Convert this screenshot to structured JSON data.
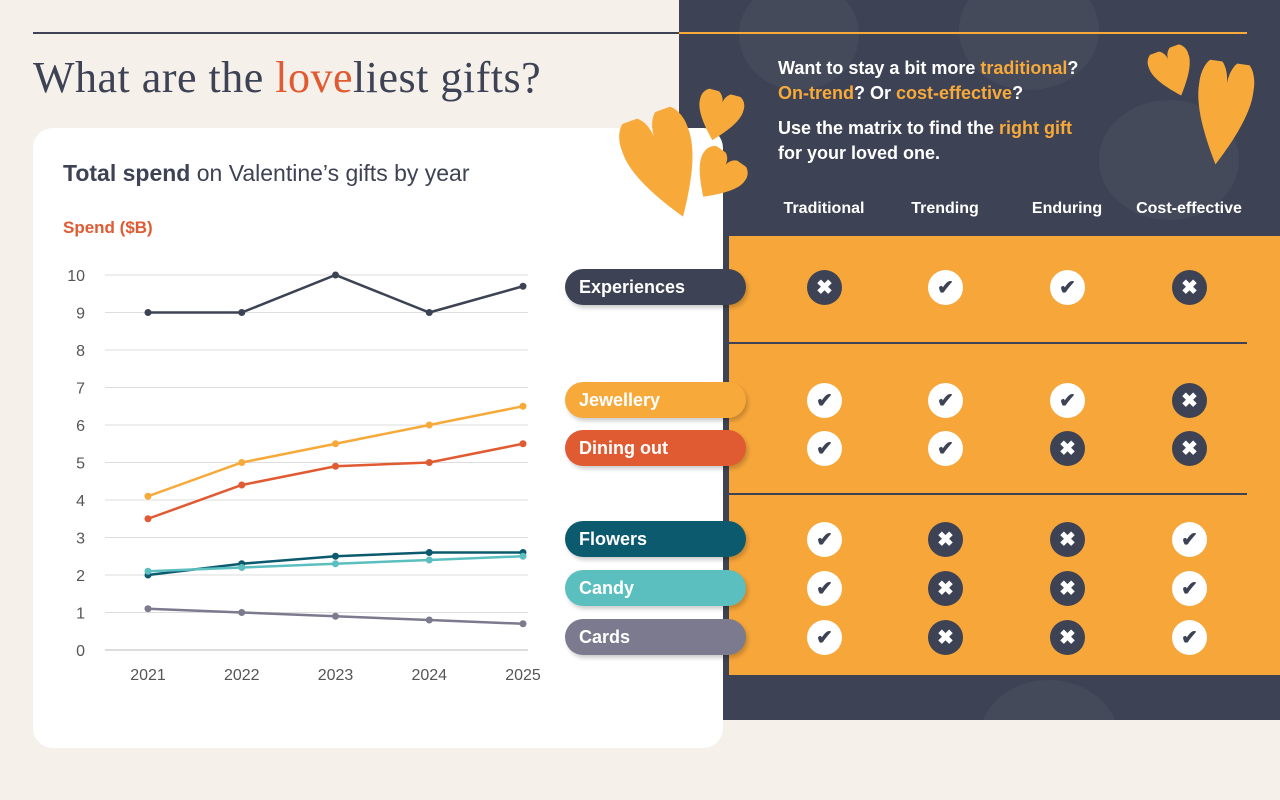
{
  "title": {
    "before": "What are the ",
    "highlight": "love",
    "after": "liest gifts?"
  },
  "chart_title": {
    "bold": "Total spend",
    "rest": " on Valentine’s gifts by year"
  },
  "intro": {
    "line1_a": "Want to stay a bit more ",
    "line1_b": "traditional",
    "line1_c": "?",
    "line2_a": "On-trend",
    "line2_b": "? Or ",
    "line2_c": "cost-effective",
    "line2_d": "?",
    "line3_a": "Use the matrix to find the ",
    "line3_b": "right gift",
    "line3_c": "for your loved one."
  },
  "columns": [
    "Traditional",
    "Trending",
    "Enduring",
    "Cost-effective"
  ],
  "colors": {
    "dark": "#3d4354",
    "orange": "#f7a93a",
    "red": "#e05a32",
    "teal": "#0b5a6e",
    "aqua": "#5bbfbf",
    "grey": "#7b7a8e"
  },
  "matrix": [
    {
      "label": "Experiences",
      "color": "#3d4354",
      "values": [
        false,
        true,
        true,
        false
      ]
    },
    {
      "label": "Jewellery",
      "color": "#f7a93a",
      "values": [
        true,
        true,
        true,
        false
      ]
    },
    {
      "label": "Dining out",
      "color": "#e05a32",
      "values": [
        true,
        true,
        false,
        false
      ]
    },
    {
      "label": "Flowers",
      "color": "#0b5a6e",
      "values": [
        true,
        false,
        false,
        true
      ]
    },
    {
      "label": "Candy",
      "color": "#5bbfbf",
      "values": [
        true,
        false,
        false,
        true
      ]
    },
    {
      "label": "Cards",
      "color": "#7b7a8e",
      "values": [
        true,
        false,
        false,
        true
      ]
    }
  ],
  "chart_data": {
    "type": "line",
    "title": "Total spend on Valentine’s gifts by year",
    "ylabel": "Spend ($B)",
    "xlabel": "",
    "ylim": [
      0,
      10
    ],
    "yticks": [
      0,
      1,
      2,
      3,
      4,
      5,
      6,
      7,
      8,
      9,
      10
    ],
    "x": [
      "2021",
      "2022",
      "2023",
      "2024",
      "2025"
    ],
    "grid": true,
    "series": [
      {
        "name": "Experiences",
        "color": "#3d4354",
        "values": [
          9,
          9,
          10,
          9,
          9.7
        ]
      },
      {
        "name": "Jewellery",
        "color": "#f7a93a",
        "values": [
          4.1,
          5.0,
          5.5,
          6.0,
          6.5
        ]
      },
      {
        "name": "Dining out",
        "color": "#e05a32",
        "values": [
          3.5,
          4.4,
          4.9,
          5.0,
          5.5
        ]
      },
      {
        "name": "Flowers",
        "color": "#0b5a6e",
        "values": [
          2.0,
          2.3,
          2.5,
          2.6,
          2.6
        ]
      },
      {
        "name": "Candy",
        "color": "#5bbfbf",
        "values": [
          2.1,
          2.2,
          2.3,
          2.4,
          2.5
        ]
      },
      {
        "name": "Cards",
        "color": "#7b7a8e",
        "values": [
          1.1,
          1.0,
          0.9,
          0.8,
          0.7
        ]
      }
    ]
  }
}
